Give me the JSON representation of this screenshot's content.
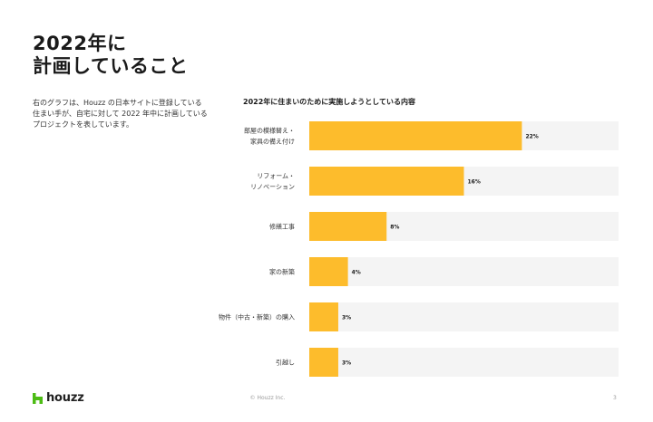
{
  "slide": {
    "title_lines": [
      "2022年に",
      "計画していること"
    ],
    "description_lines": [
      "右のグラフは、Houzz の日本サイトに登録している",
      "住まい手が、自宅に対して 2022 年中に計画している",
      "プロジェクトを表しています。"
    ]
  },
  "chart_data": {
    "type": "bar",
    "orientation": "horizontal",
    "title": "2022年に住まいのために実施しようとしている内容",
    "categories": [
      [
        "部屋の模様替え・",
        "家具の備え付け"
      ],
      [
        "リフォーム・",
        "リノベーション"
      ],
      [
        "修繕工事"
      ],
      [
        "家の新築"
      ],
      [
        "物件（中古・新築）の購入"
      ],
      [
        "引越し"
      ]
    ],
    "values": [
      22,
      16,
      8,
      4,
      3,
      3
    ],
    "value_labels": [
      "22%",
      "16%",
      "8%",
      "4%",
      "3%",
      "3%"
    ],
    "unit": "%",
    "xlim": [
      0,
      32
    ],
    "grid": false,
    "legend": "none",
    "colors": {
      "bar": "#FDBC2C",
      "track": "#F4F4F4"
    }
  },
  "footer": {
    "logo_text": "houzz",
    "copyright": "© Houzz Inc.",
    "page_number": "3"
  },
  "colors": {
    "brand_green": "#4DBC15"
  }
}
